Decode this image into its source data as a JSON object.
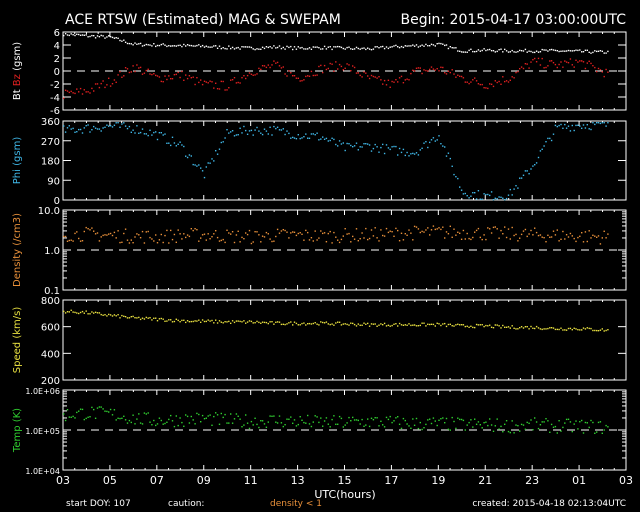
{
  "title": "ACE RTSW (Estimated) MAG & SWEPAM",
  "begin": "Begin: 2015-04-17 03:00:00UTC",
  "footer": {
    "start_doy": "start DOY: 107",
    "caution": "caution:",
    "density_note": "density < 1",
    "created": "created: 2015-04-18 02:13:04UTC"
  },
  "colors": {
    "bt": "#ffffff",
    "bz": "#e02020",
    "phi": "#40b8e8",
    "density": "#e8903a",
    "speed": "#e8e040",
    "temp": "#30d030",
    "axis": "#ffffff"
  },
  "chart_data": {
    "type": "scatter",
    "xlabel": "UTC(hours)",
    "x_ticks": [
      "03",
      "05",
      "07",
      "09",
      "11",
      "13",
      "15",
      "17",
      "19",
      "21",
      "23",
      "01",
      "03"
    ],
    "x_range_hours": [
      0,
      24
    ],
    "hours": [
      0,
      1,
      2,
      3,
      4,
      5,
      6,
      7,
      8,
      9,
      10,
      11,
      12,
      13,
      14,
      15,
      16,
      17,
      18,
      19,
      20,
      21,
      22,
      23
    ],
    "panels": [
      {
        "id": "mag",
        "ylabel_parts": [
          "Bt",
          "Bz",
          "(gsm)"
        ],
        "scale": "linear",
        "ylim": [
          -6,
          6
        ],
        "ticks": [
          "6",
          "4",
          "2",
          "0",
          "-2",
          "-4",
          "-6"
        ],
        "tick_values": [
          6,
          4,
          2,
          0,
          -2,
          -4,
          -6
        ],
        "dashed": 0,
        "series": [
          {
            "name": "Bt",
            "color_key": "bt",
            "values": [
              5.8,
              5.5,
              5.3,
              4.2,
              4.1,
              4.0,
              3.9,
              3.7,
              3.6,
              3.8,
              3.6,
              3.7,
              3.6,
              3.5,
              3.8,
              4.0,
              4.2,
              3.2,
              3.3,
              3.2,
              3.2,
              3.2,
              3.1,
              3.0
            ]
          },
          {
            "name": "Bz",
            "color_key": "bz",
            "values": [
              -3.5,
              -3.0,
              -1.5,
              0.8,
              -1.0,
              -0.5,
              -2.0,
              -2.2,
              0.0,
              1.0,
              -1.0,
              0.5,
              1.0,
              -1.0,
              -2.0,
              0.0,
              0.5,
              -1.0,
              -2.0,
              -1.0,
              1.5,
              1.0,
              1.5,
              0.0
            ]
          }
        ]
      },
      {
        "id": "phi",
        "ylabel_parts": [
          "Phi",
          "(gsm)"
        ],
        "scale": "linear",
        "ylim": [
          0,
          360
        ],
        "ticks": [
          "360",
          "270",
          "180",
          "90",
          "0"
        ],
        "tick_values": [
          360,
          270,
          180,
          90,
          0
        ],
        "series": [
          {
            "name": "Phi",
            "color_key": "phi",
            "values": [
              320,
              330,
              340,
              330,
              300,
              250,
              120,
              310,
              320,
              320,
              300,
              290,
              240,
              250,
              230,
              220,
              300,
              40,
              20,
              25,
              160,
              330,
              345,
              345
            ]
          }
        ]
      },
      {
        "id": "density",
        "ylabel_parts": [
          "Density",
          "(/cm3)"
        ],
        "scale": "log",
        "ylim": [
          0.1,
          10
        ],
        "ticks": [
          "10.0",
          "1.0",
          "0.1"
        ],
        "tick_values": [
          10,
          1,
          0.1
        ],
        "dashed": 1,
        "series": [
          {
            "name": "Density",
            "color_key": "density",
            "values": [
              2.5,
              2.6,
              2.4,
              2.3,
              2.2,
              2.4,
              2.5,
              2.3,
              2.2,
              2.4,
              2.4,
              2.3,
              2.4,
              2.5,
              2.6,
              2.8,
              2.9,
              2.8,
              2.7,
              2.6,
              2.5,
              2.4,
              2.3,
              2.2
            ]
          }
        ]
      },
      {
        "id": "speed",
        "ylabel_parts": [
          "Speed",
          "(km/s)"
        ],
        "scale": "linear",
        "ylim": [
          200,
          800
        ],
        "ticks": [
          "800",
          "600",
          "400",
          "200"
        ],
        "tick_values": [
          800,
          600,
          400,
          200
        ],
        "series": [
          {
            "name": "Speed",
            "color_key": "speed",
            "values": [
              720,
              710,
              690,
              670,
              660,
              650,
              645,
              640,
              640,
              630,
              630,
              630,
              625,
              620,
              620,
              620,
              620,
              610,
              610,
              600,
              600,
              590,
              590,
              580
            ]
          }
        ]
      },
      {
        "id": "temp",
        "ylabel_parts": [
          "Temp",
          "(K)"
        ],
        "scale": "log",
        "ylim": [
          10000,
          1000000
        ],
        "ticks": [
          "1.0E+06",
          "1.0E+05",
          "1.0E+04"
        ],
        "tick_values": [
          1000000,
          100000,
          10000
        ],
        "dashed": 100000,
        "series": [
          {
            "name": "Temp",
            "color_key": "temp",
            "values": [
              250000,
              280000,
              260000,
              200000,
              180000,
              190000,
              200000,
              180000,
              170000,
              180000,
              170000,
              160000,
              160000,
              170000,
              160000,
              150000,
              150000,
              140000,
              140000,
              130000,
              140000,
              130000,
              130000,
              120000
            ]
          }
        ]
      }
    ]
  }
}
